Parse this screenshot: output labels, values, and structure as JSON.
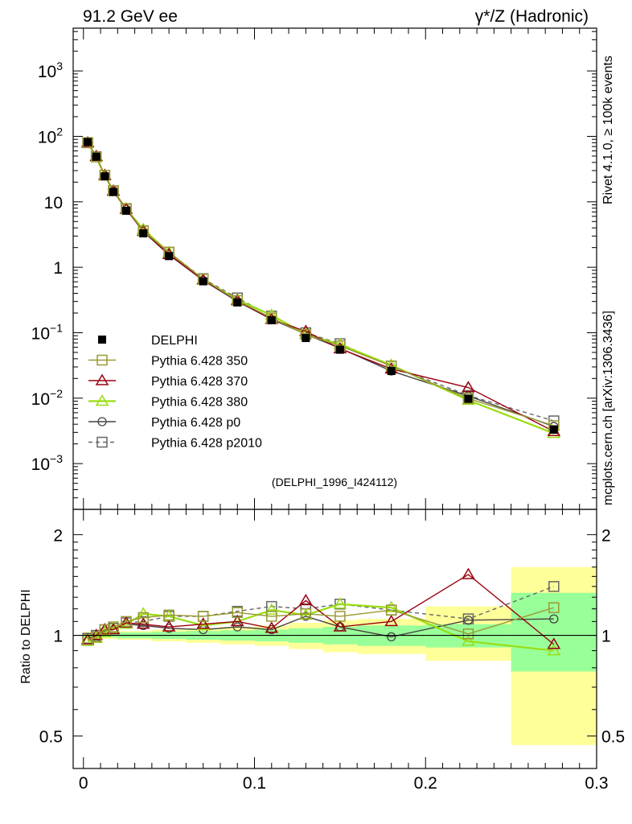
{
  "header": {
    "left_title": "91.2 GeV ee",
    "right_title": "γ*/Z (Hadronic)"
  },
  "side_labels": {
    "rivet": "Rivet 4.1.0, ≥ 100k events",
    "mcplots": "mcplots.cern.ch [arXiv:1306.3436]"
  },
  "colors": {
    "data": "#000000",
    "p350": "#999933",
    "p370": "#990011",
    "p380": "#99dd11",
    "p0": "#444444",
    "p2010": "#666666",
    "band_green": "#99ff99",
    "band_yellow": "#ffff99"
  },
  "chart_data": [
    {
      "type": "scatter",
      "panel": "main",
      "yscale": "log",
      "xlim": [
        -0.006,
        0.3
      ],
      "ylim": [
        0.0002,
        4500
      ],
      "ytick_values": [
        0.001,
        0.01,
        0.1,
        1,
        10,
        100,
        1000
      ],
      "ytick_base": [
        "10",
        "10",
        "10",
        "1",
        "10",
        "10",
        "10"
      ],
      "ytick_exp": [
        "−3",
        "−2",
        "−1",
        "",
        "",
        "2",
        "3"
      ],
      "reference_label": "(DELPHI_1996_I424112)",
      "legend_position": "center-left",
      "x": [
        0.0025,
        0.0075,
        0.0125,
        0.0175,
        0.025,
        0.035,
        0.05,
        0.07,
        0.09,
        0.11,
        0.13,
        0.15,
        0.18,
        0.225,
        0.275
      ],
      "series": [
        {
          "key": "data",
          "name": "DELPHI",
          "marker": "square-filled",
          "values": [
            82,
            49,
            24.5,
            14.2,
            7.3,
            3.3,
            1.48,
            0.61,
            0.29,
            0.155,
            0.083,
            0.055,
            0.026,
            0.0098,
            0.0033
          ]
        },
        {
          "key": "p350",
          "name": "Pythia 6.428 350",
          "marker": "square-open",
          "values": [
            80,
            48.5,
            25.5,
            14.8,
            7.9,
            3.6,
            1.7,
            0.66,
            0.31,
            0.168,
            0.094,
            0.063,
            0.031,
            0.0099,
            0.0038
          ]
        },
        {
          "key": "p370",
          "name": "Pythia 6.428 370",
          "marker": "triangle-open",
          "values": [
            80,
            49.5,
            25.5,
            14.6,
            7.7,
            3.55,
            1.57,
            0.64,
            0.31,
            0.16,
            0.105,
            0.057,
            0.028,
            0.0145,
            0.0031
          ]
        },
        {
          "key": "p380",
          "name": "Pythia 6.428 380",
          "marker": "triangle-open",
          "values": [
            79,
            48,
            25,
            14.7,
            7.8,
            3.8,
            1.68,
            0.65,
            0.32,
            0.185,
            0.095,
            0.066,
            0.032,
            0.0093,
            0.0029
          ]
        },
        {
          "key": "p0",
          "name": "Pythia 6.428 p0",
          "marker": "circle-open",
          "values": [
            79,
            48,
            25,
            14.6,
            7.7,
            3.5,
            1.55,
            0.63,
            0.3,
            0.16,
            0.095,
            0.058,
            0.026,
            0.0108,
            0.0037
          ]
        },
        {
          "key": "p2010",
          "name": "Pythia 6.428 p2010",
          "marker": "square-open",
          "dashed": true,
          "values": [
            80,
            49,
            25.5,
            14.7,
            7.8,
            3.6,
            1.7,
            0.67,
            0.34,
            0.18,
            0.1,
            0.068,
            0.031,
            0.011,
            0.0045
          ]
        }
      ]
    },
    {
      "type": "scatter",
      "panel": "ratio",
      "ylabel": "Ratio to DELPHI",
      "yscale": "log",
      "xlim": [
        -0.006,
        0.3
      ],
      "ylim": [
        0.4,
        2.38
      ],
      "ytick_values": [
        0.5,
        1,
        2
      ],
      "ytick_labels": [
        "0.5",
        "1",
        "2"
      ],
      "xticks": [
        0,
        0.1,
        0.2,
        0.3
      ],
      "xtick_labels": [
        "0",
        "0.1",
        "0.2",
        "0.3"
      ],
      "bands": [
        {
          "x0": 0.0,
          "x1": 0.005,
          "green": [
            0.985,
            1.015
          ],
          "yellow": [
            0.975,
            1.025
          ]
        },
        {
          "x0": 0.005,
          "x1": 0.01,
          "green": [
            0.985,
            1.015
          ],
          "yellow": [
            0.975,
            1.025
          ]
        },
        {
          "x0": 0.01,
          "x1": 0.015,
          "green": [
            0.985,
            1.015
          ],
          "yellow": [
            0.975,
            1.025
          ]
        },
        {
          "x0": 0.015,
          "x1": 0.02,
          "green": [
            0.985,
            1.015
          ],
          "yellow": [
            0.975,
            1.025
          ]
        },
        {
          "x0": 0.02,
          "x1": 0.03,
          "green": [
            0.98,
            1.02
          ],
          "yellow": [
            0.97,
            1.03
          ]
        },
        {
          "x0": 0.03,
          "x1": 0.04,
          "green": [
            0.98,
            1.02
          ],
          "yellow": [
            0.97,
            1.03
          ]
        },
        {
          "x0": 0.04,
          "x1": 0.06,
          "green": [
            0.975,
            1.025
          ],
          "yellow": [
            0.96,
            1.04
          ]
        },
        {
          "x0": 0.06,
          "x1": 0.08,
          "green": [
            0.97,
            1.03
          ],
          "yellow": [
            0.95,
            1.05
          ]
        },
        {
          "x0": 0.08,
          "x1": 0.1,
          "green": [
            0.965,
            1.035
          ],
          "yellow": [
            0.94,
            1.06
          ]
        },
        {
          "x0": 0.1,
          "x1": 0.12,
          "green": [
            0.96,
            1.04
          ],
          "yellow": [
            0.93,
            1.07
          ]
        },
        {
          "x0": 0.12,
          "x1": 0.14,
          "green": [
            0.95,
            1.05
          ],
          "yellow": [
            0.91,
            1.09
          ]
        },
        {
          "x0": 0.14,
          "x1": 0.16,
          "green": [
            0.94,
            1.06
          ],
          "yellow": [
            0.89,
            1.11
          ]
        },
        {
          "x0": 0.16,
          "x1": 0.2,
          "green": [
            0.93,
            1.07
          ],
          "yellow": [
            0.88,
            1.12
          ]
        },
        {
          "x0": 0.2,
          "x1": 0.25,
          "green": [
            0.92,
            1.08
          ],
          "yellow": [
            0.84,
            1.22
          ]
        },
        {
          "x0": 0.25,
          "x1": 0.3,
          "green": [
            0.78,
            1.34
          ],
          "yellow": [
            0.47,
            1.6
          ]
        }
      ],
      "x": [
        0.0025,
        0.0075,
        0.0125,
        0.0175,
        0.025,
        0.035,
        0.05,
        0.07,
        0.09,
        0.11,
        0.13,
        0.15,
        0.18,
        0.225,
        0.275
      ],
      "series": [
        {
          "key": "p350",
          "values": [
            0.97,
            0.99,
            1.04,
            1.06,
            1.1,
            1.13,
            1.15,
            1.14,
            1.17,
            1.14,
            1.16,
            1.14,
            1.19,
            1.01,
            1.21
          ]
        },
        {
          "key": "p370",
          "values": [
            0.97,
            1.0,
            1.04,
            1.04,
            1.09,
            1.08,
            1.06,
            1.08,
            1.1,
            1.05,
            1.27,
            1.06,
            1.1,
            1.52,
            0.94
          ]
        },
        {
          "key": "p380",
          "values": [
            0.96,
            0.98,
            1.02,
            1.05,
            1.08,
            1.16,
            1.14,
            1.07,
            1.1,
            1.19,
            1.15,
            1.24,
            1.21,
            0.96,
            0.9
          ]
        },
        {
          "key": "p0",
          "values": [
            0.96,
            0.98,
            1.03,
            1.04,
            1.08,
            1.07,
            1.05,
            1.04,
            1.06,
            1.04,
            1.14,
            1.06,
            0.99,
            1.11,
            1.12
          ]
        },
        {
          "key": "p2010",
          "values": [
            0.98,
            1.0,
            1.04,
            1.05,
            1.09,
            1.1,
            1.14,
            1.14,
            1.18,
            1.22,
            1.2,
            1.24,
            1.19,
            1.12,
            1.4
          ]
        }
      ]
    }
  ]
}
